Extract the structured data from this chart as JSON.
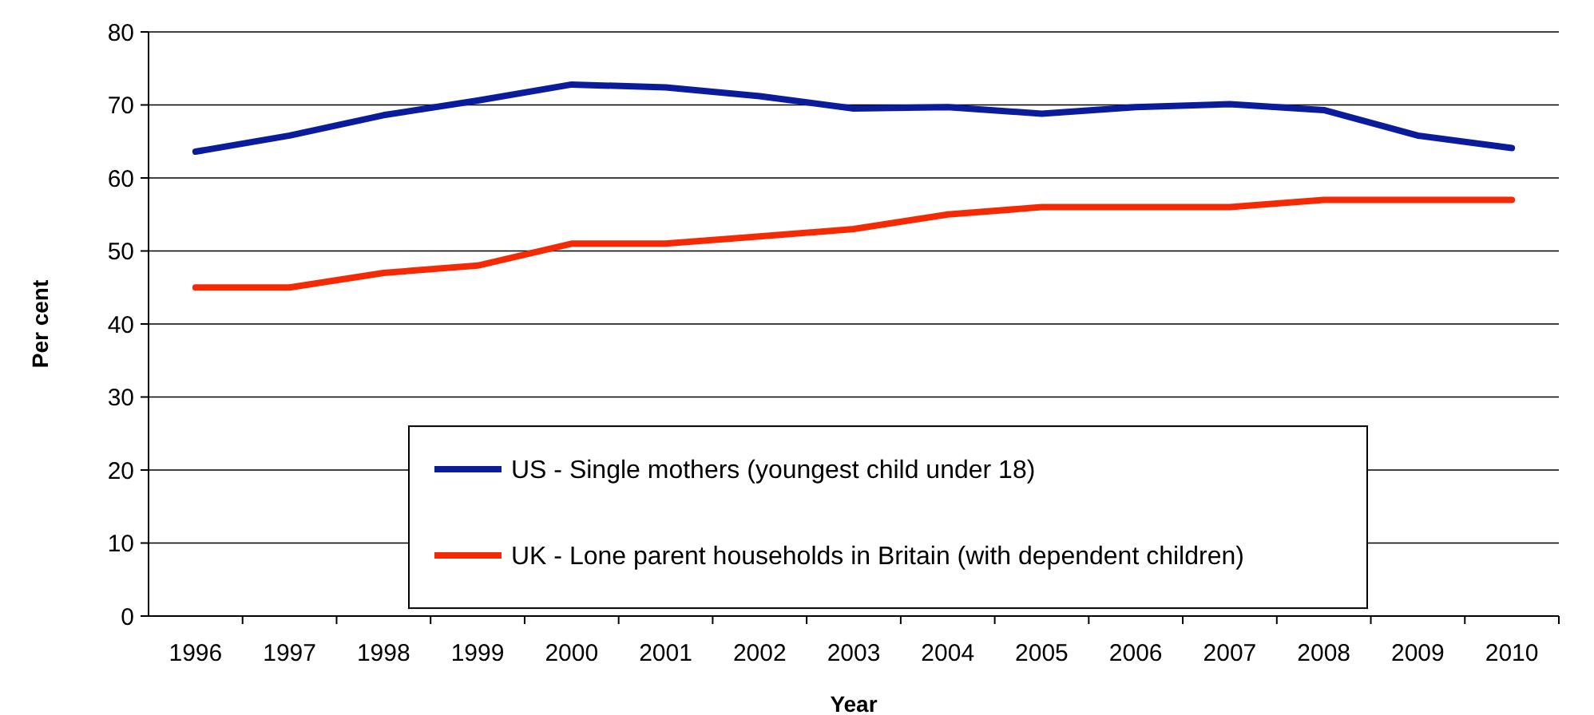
{
  "chart_data": {
    "type": "line",
    "xlabel": "Year",
    "ylabel": "Per cent",
    "categories": [
      "1996",
      "1997",
      "1998",
      "1999",
      "2000",
      "2001",
      "2002",
      "2003",
      "2004",
      "2005",
      "2006",
      "2007",
      "2008",
      "2009",
      "2010"
    ],
    "series": [
      {
        "name": "US - Single mothers (youngest child under 18)",
        "color": "#0a1c9c",
        "values": [
          63.6,
          65.8,
          68.6,
          70.6,
          72.8,
          72.4,
          71.2,
          69.5,
          69.7,
          68.8,
          69.7,
          70.1,
          69.3,
          65.8,
          64.1
        ]
      },
      {
        "name": "UK - Lone parent households in Britain (with dependent children)",
        "color": "#f52a05",
        "values": [
          45,
          45,
          47,
          48,
          51,
          51,
          52,
          53,
          55,
          56,
          56,
          56,
          57,
          57,
          57
        ]
      }
    ],
    "ylim": [
      0,
      80
    ],
    "yticks": [
      0,
      10,
      20,
      30,
      40,
      50,
      60,
      70,
      80
    ],
    "grid": "y",
    "legend": "bottom",
    "marker": "none",
    "line_style": "solid"
  }
}
